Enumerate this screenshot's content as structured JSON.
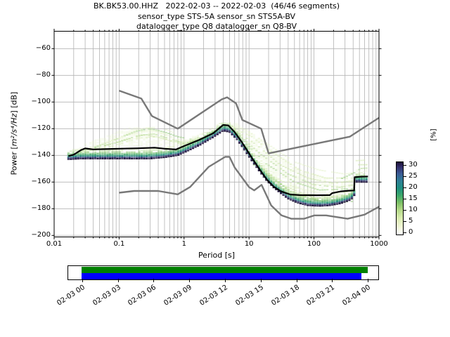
{
  "title": {
    "line1": "BK.BK53.00.HHZ   2022-02-03 -- 2022-02-03  (46/46 segments)",
    "line2": "sensor_type STS-5A sensor_sn STS5A-BV",
    "line3": "datalogger_type Q8 datalogger_sn Q8-BV"
  },
  "axes": {
    "xlabel": "Period [s]",
    "ylabel_pre": "Power [",
    "ylabel_math": "m²/s⁴/Hz",
    "ylabel_post": "] [dB]",
    "x_tick_labels": [
      "0.01",
      "0.1",
      "1",
      "10",
      "100",
      "1000"
    ],
    "y_tick_values": [
      -60,
      -80,
      -100,
      -120,
      -140,
      -160,
      -180,
      -200
    ]
  },
  "colorbar": {
    "label": "[%]",
    "tick_values": [
      0,
      5,
      10,
      15,
      20,
      25,
      30
    ]
  },
  "timeline": {
    "tick_labels": [
      "02-03 00",
      "02-03 03",
      "02-03 06",
      "02-03 09",
      "02-03 12",
      "02-03 15",
      "02-03 18",
      "02-03 21",
      "02-04 00"
    ],
    "coverage_color": "#008000",
    "segments_color": "#0000ff"
  },
  "chart_data": {
    "type": "heatmap",
    "title": "BK.BK53.00.HHZ   2022-02-03 -- 2022-02-03  (46/46 segments)",
    "xlabel": "Period [s]",
    "ylabel": "Power [m²/s⁴/Hz] [dB]",
    "colorbar_label": "[%]",
    "xscale": "log",
    "xlim": [
      0.01,
      1000
    ],
    "ylim": [
      -201,
      -46.5
    ],
    "grid": true,
    "colorbar_range": [
      0,
      30
    ],
    "grid_color": "#b3b3b3",
    "noise_model_color": "#787878",
    "mode_color": "#000000",
    "period_bin_log_step": 0.0376,
    "period_range": [
      0.0166,
      676
    ],
    "mode_curve": [
      [
        0.0166,
        -140.5
      ],
      [
        0.02,
        -139.5
      ],
      [
        0.026,
        -136
      ],
      [
        0.03,
        -134.8
      ],
      [
        0.04,
        -135.5
      ],
      [
        0.06,
        -135.3
      ],
      [
        0.1,
        -135
      ],
      [
        0.2,
        -134.7
      ],
      [
        0.35,
        -134.2
      ],
      [
        0.5,
        -135
      ],
      [
        0.75,
        -135.6
      ],
      [
        1.0,
        -133
      ],
      [
        1.7,
        -128.5
      ],
      [
        2.8,
        -123.5
      ],
      [
        4.0,
        -117.2
      ],
      [
        4.8,
        -117.5
      ],
      [
        6.0,
        -122.5
      ],
      [
        7.6,
        -129.5
      ],
      [
        9.7,
        -137.5
      ],
      [
        12,
        -144.5
      ],
      [
        15,
        -151.5
      ],
      [
        19,
        -158.5
      ],
      [
        24,
        -163.5
      ],
      [
        31,
        -167
      ],
      [
        43,
        -169.3
      ],
      [
        60,
        -169.8
      ],
      [
        110,
        -169.9
      ],
      [
        175,
        -169.8
      ],
      [
        190,
        -168.3
      ],
      [
        260,
        -167
      ],
      [
        340,
        -166.5
      ],
      [
        415,
        -166.3
      ],
      [
        422,
        -156.3
      ],
      [
        520,
        -156
      ],
      [
        676,
        -155.8
      ]
    ],
    "nhnm": [
      [
        0.1,
        -91.5
      ],
      [
        0.22,
        -97.4
      ],
      [
        0.32,
        -110.5
      ],
      [
        0.8,
        -120
      ],
      [
        3.8,
        -98
      ],
      [
        4.6,
        -96.5
      ],
      [
        6.3,
        -101
      ],
      [
        7.9,
        -113.5
      ],
      [
        15.4,
        -120
      ],
      [
        20,
        -138.5
      ],
      [
        354.8,
        -126
      ],
      [
        1000,
        -111.8
      ]
    ],
    "nlnm": [
      [
        0.1,
        -168
      ],
      [
        0.17,
        -166.7
      ],
      [
        0.4,
        -166.7
      ],
      [
        0.8,
        -169.2
      ],
      [
        1.24,
        -163.7
      ],
      [
        2.4,
        -148.6
      ],
      [
        4.3,
        -141.1
      ],
      [
        5,
        -141.1
      ],
      [
        6,
        -149
      ],
      [
        10,
        -163.8
      ],
      [
        12,
        -166.2
      ],
      [
        15.6,
        -162.1
      ],
      [
        21.9,
        -177.5
      ],
      [
        31.6,
        -185
      ],
      [
        45,
        -187.5
      ],
      [
        70,
        -187.5
      ],
      [
        101,
        -185
      ],
      [
        154,
        -185
      ],
      [
        328,
        -187.5
      ],
      [
        600,
        -184.4
      ],
      [
        1000,
        -178.5
      ]
    ],
    "density_envelope": [
      [
        0.0166,
        -143,
        -137
      ],
      [
        0.025,
        -142.5,
        -133
      ],
      [
        0.04,
        -142.5,
        -129
      ],
      [
        0.07,
        -142.5,
        -125
      ],
      [
        0.12,
        -142.5,
        -120
      ],
      [
        0.2,
        -142.5,
        -118.5
      ],
      [
        0.3,
        -142.5,
        -119.5
      ],
      [
        0.5,
        -141.5,
        -123
      ],
      [
        0.8,
        -140,
        -127
      ],
      [
        1.1,
        -137,
        -127.5
      ],
      [
        1.8,
        -132,
        -123.5
      ],
      [
        2.8,
        -126.5,
        -119
      ],
      [
        4,
        -121.5,
        -113.5
      ],
      [
        5,
        -122.5,
        -113.5
      ],
      [
        6.5,
        -128,
        -116
      ],
      [
        8.5,
        -136,
        -119
      ],
      [
        11,
        -144,
        -123
      ],
      [
        14,
        -151,
        -127
      ],
      [
        18,
        -158,
        -131
      ],
      [
        23,
        -163.5,
        -135
      ],
      [
        30,
        -168,
        -139.5
      ],
      [
        40,
        -172.5,
        -144
      ],
      [
        55,
        -175.5,
        -149
      ],
      [
        80,
        -177.5,
        -152
      ],
      [
        120,
        -178,
        -155
      ],
      [
        180,
        -177.5,
        -157.5
      ],
      [
        260,
        -176,
        -159
      ],
      [
        360,
        -173.5,
        -158
      ],
      [
        415,
        -171,
        -155
      ],
      [
        428,
        -160,
        -150
      ],
      [
        676,
        -160,
        -150.5
      ]
    ],
    "cell_colors_from_bottom": [
      {
        "c": "#1d1137",
        "a": 0.95
      },
      {
        "c": "#31356e",
        "a": 0.9
      },
      {
        "c": "#1f8a80",
        "a": 0.85
      },
      {
        "c": "#2f9f63",
        "a": 0.75
      },
      {
        "c": "#5cb35d",
        "a": 0.62
      },
      {
        "c": "#8cc871",
        "a": 0.52
      },
      {
        "c": "#b5db90",
        "a": 0.45
      },
      {
        "c": "#d3e9ab",
        "a": 0.4
      },
      {
        "c": "#e7f3cc",
        "a": 0.34
      }
    ],
    "streak_colors": [
      "#e3f1c8",
      "#d4e9ad",
      "#c3e09a",
      "#a7d383",
      "#8cc871"
    ],
    "psd_streaks": [
      [
        [
          4.5,
          -117
        ],
        [
          9,
          -121
        ],
        [
          20,
          -132
        ],
        [
          50,
          -145
        ],
        [
          120,
          -151
        ],
        [
          300,
          -154
        ],
        [
          415,
          -153
        ]
      ],
      [
        [
          5,
          -118
        ],
        [
          11,
          -126
        ],
        [
          25,
          -139
        ],
        [
          60,
          -151
        ],
        [
          150,
          -157
        ],
        [
          415,
          -157
        ]
      ],
      [
        [
          5.5,
          -120
        ],
        [
          13,
          -132
        ],
        [
          30,
          -147
        ],
        [
          80,
          -157
        ],
        [
          200,
          -161
        ],
        [
          415,
          -159
        ]
      ],
      [
        [
          6,
          -122
        ],
        [
          15,
          -139
        ],
        [
          40,
          -154
        ],
        [
          100,
          -162
        ],
        [
          250,
          -164
        ],
        [
          415,
          -162
        ]
      ],
      [
        [
          6.5,
          -124
        ],
        [
          18,
          -146
        ],
        [
          50,
          -160
        ],
        [
          120,
          -166
        ],
        [
          415,
          -165
        ]
      ],
      [
        [
          7,
          -127
        ],
        [
          22,
          -152
        ],
        [
          60,
          -165
        ],
        [
          150,
          -169
        ],
        [
          415,
          -167
        ]
      ],
      [
        [
          7.5,
          -131
        ],
        [
          26,
          -157
        ],
        [
          80,
          -169
        ],
        [
          200,
          -171
        ],
        [
          415,
          -169
        ]
      ],
      [
        [
          8.5,
          -136
        ],
        [
          32,
          -162
        ],
        [
          100,
          -172
        ],
        [
          415,
          -171
        ]
      ],
      [
        [
          10,
          -141
        ],
        [
          40,
          -166
        ],
        [
          120,
          -174
        ],
        [
          415,
          -173
        ]
      ],
      [
        [
          11,
          -146
        ],
        [
          50,
          -169
        ],
        [
          150,
          -175.5
        ],
        [
          415,
          -174.5
        ]
      ],
      [
        [
          0.022,
          -137.5
        ],
        [
          0.06,
          -131
        ],
        [
          0.15,
          -124
        ],
        [
          0.3,
          -121
        ],
        [
          0.5,
          -124
        ],
        [
          0.8,
          -128
        ],
        [
          1.3,
          -129
        ],
        [
          2,
          -126
        ],
        [
          3,
          -121
        ],
        [
          4,
          -117.5
        ]
      ],
      [
        [
          0.03,
          -138
        ],
        [
          0.08,
          -133
        ],
        [
          0.2,
          -127
        ],
        [
          0.4,
          -126
        ],
        [
          0.7,
          -130
        ],
        [
          1.5,
          -129.5
        ],
        [
          2.5,
          -124
        ],
        [
          4,
          -118
        ]
      ],
      [
        [
          0.02,
          -139
        ],
        [
          0.05,
          -134
        ],
        [
          0.12,
          -128.5
        ],
        [
          0.25,
          -124.5
        ],
        [
          0.45,
          -127
        ],
        [
          0.9,
          -131.5
        ],
        [
          2,
          -127.5
        ],
        [
          3.5,
          -120
        ]
      ],
      [
        [
          0.03,
          -136
        ],
        [
          0.1,
          -130
        ],
        [
          0.2,
          -125
        ],
        [
          0.35,
          -124
        ],
        [
          0.6,
          -127.5
        ],
        [
          1,
          -131
        ],
        [
          2.2,
          -126.5
        ]
      ],
      [
        [
          0.04,
          -134.5
        ],
        [
          0.1,
          -127
        ],
        [
          0.18,
          -122
        ],
        [
          0.3,
          -120
        ],
        [
          0.5,
          -122.5
        ],
        [
          0.8,
          -126
        ],
        [
          1.3,
          -128
        ]
      ],
      [
        [
          0.05,
          -133
        ],
        [
          0.12,
          -125
        ],
        [
          0.2,
          -120.5
        ],
        [
          0.33,
          -119
        ],
        [
          0.55,
          -121
        ],
        [
          0.9,
          -125
        ]
      ],
      [
        [
          430,
          -144
        ],
        [
          676,
          -143.5
        ]
      ],
      [
        [
          430,
          -147
        ],
        [
          676,
          -147
        ]
      ],
      [
        [
          460,
          -150
        ],
        [
          676,
          -149.5
        ]
      ],
      [
        [
          250,
          -158
        ],
        [
          420,
          -153
        ],
        [
          520,
          -150
        ]
      ]
    ]
  }
}
